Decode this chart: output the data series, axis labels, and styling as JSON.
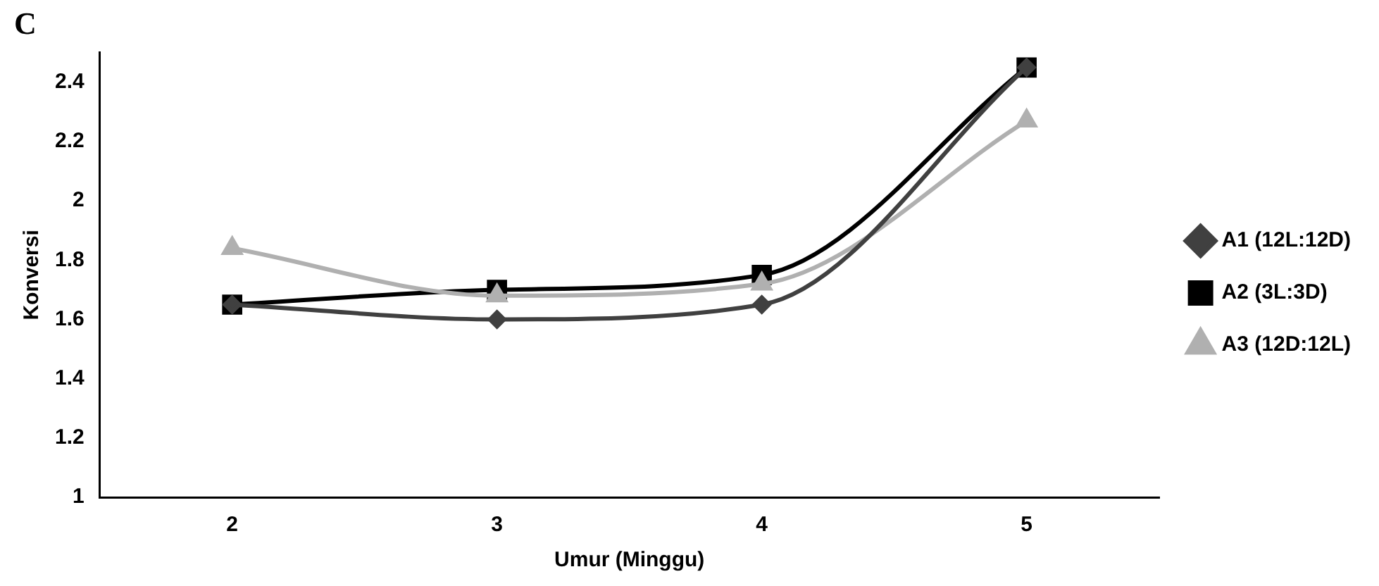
{
  "chart_data": {
    "type": "line",
    "title": "C",
    "xlabel": "Umur (Minggu)",
    "ylabel": "Konversi",
    "categories": [
      "2",
      "3",
      "4",
      "5"
    ],
    "series": [
      {
        "name": "A1 (12L:12D)",
        "color": "#404040",
        "marker": "diamond",
        "values": [
          1.65,
          1.6,
          1.65,
          2.45
        ]
      },
      {
        "name": "A2 (3L:3D)",
        "color": "#000000",
        "marker": "square",
        "values": [
          1.65,
          1.7,
          1.75,
          2.45
        ]
      },
      {
        "name": "A3 (12D:12L)",
        "color": "#b0b0b0",
        "marker": "triangle",
        "values": [
          1.84,
          1.68,
          1.72,
          2.27
        ]
      }
    ],
    "ylim": [
      1,
      2.5
    ],
    "yticks": [
      1,
      1.2,
      1.4,
      1.6,
      1.8,
      2,
      2.2,
      2.4
    ],
    "grid": false,
    "legend": "right"
  }
}
